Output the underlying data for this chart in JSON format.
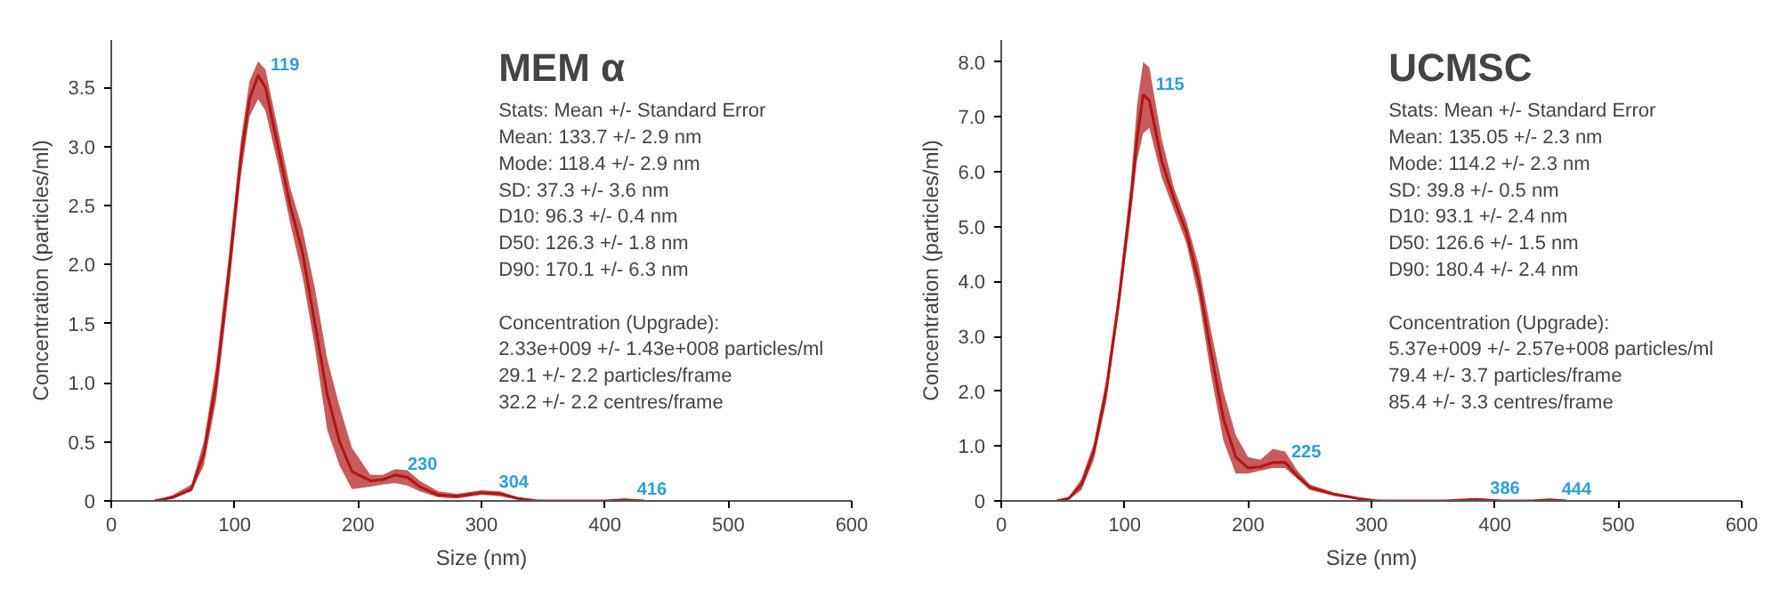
{
  "chart_data": [
    {
      "type": "line",
      "title": "MEM α",
      "xlabel": "Size (nm)",
      "ylabel": "Concentration (particles/ml)",
      "xlim": [
        0,
        600
      ],
      "xticks": [
        0,
        100,
        200,
        300,
        400,
        500,
        600
      ],
      "ylim": [
        0,
        3.9
      ],
      "yticks": [
        0,
        0.5,
        {
          "value": 1,
          "label": "1.0"
        },
        1.5,
        {
          "value": 2,
          "label": "2.0"
        },
        2.5,
        {
          "value": 3,
          "label": "3.0"
        },
        3.5
      ],
      "grid": false,
      "marker": "none",
      "line_style": "solid",
      "series": [
        {
          "color": "#b01616",
          "x": [
            35,
            50,
            65,
            75,
            85,
            95,
            105,
            112,
            119,
            125,
            135,
            145,
            155,
            165,
            175,
            185,
            195,
            210,
            220,
            230,
            240,
            250,
            265,
            280,
            300,
            315,
            330,
            345,
            400,
            416,
            432
          ],
          "values": [
            0,
            0.03,
            0.1,
            0.4,
            1.0,
            1.9,
            2.9,
            3.4,
            3.6,
            3.5,
            3.0,
            2.5,
            2.1,
            1.5,
            0.9,
            0.5,
            0.25,
            0.17,
            0.18,
            0.22,
            0.2,
            0.12,
            0.05,
            0.04,
            0.07,
            0.06,
            0.02,
            0,
            0,
            0.01,
            0
          ],
          "lower": [
            0,
            0.02,
            0.08,
            0.3,
            0.85,
            1.75,
            2.75,
            3.25,
            3.4,
            3.3,
            2.85,
            2.35,
            1.9,
            1.3,
            0.6,
            0.3,
            0.1,
            0.12,
            0.14,
            0.15,
            0.13,
            0.08,
            0.03,
            0.02,
            0.05,
            0.04,
            0.01,
            0,
            0,
            0.005,
            0
          ],
          "upper": [
            0,
            0.05,
            0.14,
            0.5,
            1.15,
            2.05,
            3.05,
            3.55,
            3.72,
            3.65,
            3.15,
            2.65,
            2.3,
            1.8,
            1.2,
            0.8,
            0.45,
            0.22,
            0.22,
            0.27,
            0.26,
            0.17,
            0.08,
            0.06,
            0.09,
            0.08,
            0.03,
            0,
            0,
            0.015,
            0
          ]
        }
      ],
      "annotations": [
        "Stats: Mean +/- Standard Error",
        "Mean: 133.7 +/- 2.9 nm",
        "Mode: 118.4 +/- 2.9 nm",
        "SD: 37.3 +/- 3.6 nm",
        "D10: 96.3 +/- 0.4 nm",
        "D50: 126.3 +/- 1.8 nm",
        "D90: 170.1 +/- 6.3 nm",
        "Concentration (Upgrade):",
        "2.33e+009 +/- 1.43e+008 particles/ml",
        "29.1 +/- 2.2 particles/frame",
        "32.2 +/- 2.2 centres/frame",
        {
          "text": "119",
          "x": 119,
          "y": 3.6
        },
        {
          "text": "230",
          "x": 230,
          "y": 0.22
        },
        {
          "text": "304",
          "x": 304,
          "y": 0.07
        },
        {
          "text": "416",
          "x": 416,
          "y": 0.01
        }
      ]
    },
    {
      "type": "line",
      "title": "UCMSC",
      "xlabel": "Size (nm)",
      "ylabel": "Concentration (particles/ml)",
      "xlim": [
        0,
        600
      ],
      "xticks": [
        0,
        100,
        200,
        300,
        400,
        500,
        600
      ],
      "ylim": [
        0,
        8.4
      ],
      "yticks": [
        0,
        {
          "value": 1,
          "label": "1.0"
        },
        {
          "value": 2,
          "label": "2.0"
        },
        {
          "value": 3,
          "label": "3.0"
        },
        {
          "value": 4,
          "label": "4.0"
        },
        {
          "value": 5,
          "label": "5.0"
        },
        {
          "value": 6,
          "label": "6.0"
        },
        {
          "value": 7,
          "label": "7.0"
        },
        {
          "value": 8,
          "label": "8.0"
        }
      ],
      "grid": false,
      "marker": "none",
      "line_style": "solid",
      "series": [
        {
          "color": "#b01616",
          "x": [
            45,
            55,
            65,
            75,
            85,
            95,
            105,
            110,
            115,
            120,
            130,
            140,
            150,
            160,
            170,
            180,
            190,
            200,
            210,
            220,
            230,
            240,
            250,
            270,
            290,
            305,
            360,
            385,
            405,
            430,
            444,
            458
          ],
          "values": [
            0,
            0.05,
            0.3,
            0.9,
            2.0,
            3.6,
            5.5,
            6.6,
            7.4,
            7.3,
            6.2,
            5.5,
            4.9,
            4.0,
            2.7,
            1.5,
            0.8,
            0.6,
            0.62,
            0.7,
            0.7,
            0.45,
            0.25,
            0.12,
            0.04,
            0,
            0,
            0.03,
            0,
            0,
            0.02,
            0
          ],
          "lower": [
            0,
            0.03,
            0.2,
            0.75,
            1.8,
            3.4,
            5.2,
            6.2,
            6.7,
            6.8,
            5.9,
            5.3,
            4.7,
            3.7,
            2.3,
            1.1,
            0.5,
            0.5,
            0.55,
            0.6,
            0.6,
            0.4,
            0.2,
            0.09,
            0.02,
            0,
            0,
            0.02,
            0,
            0,
            0.01,
            0
          ],
          "upper": [
            0,
            0.08,
            0.4,
            1.05,
            2.2,
            3.8,
            5.8,
            7.2,
            8.0,
            7.9,
            6.6,
            5.7,
            5.1,
            4.3,
            3.1,
            2.0,
            1.2,
            0.8,
            0.75,
            0.95,
            0.9,
            0.55,
            0.3,
            0.15,
            0.06,
            0,
            0,
            0.05,
            0,
            0,
            0.03,
            0
          ]
        }
      ],
      "annotations": [
        "Stats: Mean +/- Standard Error",
        "Mean: 135.05 +/- 2.3 nm",
        "Mode: 114.2 +/- 2.3 nm",
        "SD: 39.8 +/- 0.5 nm",
        "D10: 93.1 +/- 2.4 nm",
        "D50: 126.6 +/- 1.5 nm",
        "D90: 180.4 +/- 2.4 nm",
        "Concentration (Upgrade):",
        "5.37e+009 +/- 2.57e+008 particles/ml",
        "79.4 +/- 3.7 particles/frame",
        "85.4 +/- 3.3 centres/frame",
        {
          "text": "115",
          "x": 115,
          "y": 7.4
        },
        {
          "text": "225",
          "x": 225,
          "y": 0.7
        },
        {
          "text": "386",
          "x": 386,
          "y": 0.03
        },
        {
          "text": "444",
          "x": 444,
          "y": 0.02
        }
      ]
    }
  ]
}
